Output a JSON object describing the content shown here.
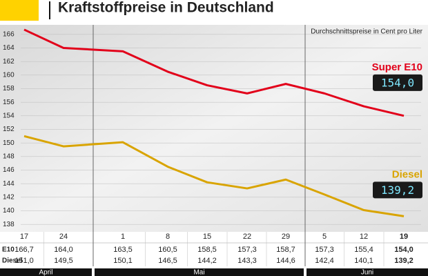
{
  "chart_data": {
    "type": "line",
    "title": "Kraftstoffpreise in Deutschland",
    "subtitle": "Durchschnittspreise in Cent pro Liter",
    "groups": [
      {
        "name": "April",
        "categories": [
          "17",
          "24"
        ]
      },
      {
        "name": "Mai",
        "categories": [
          "1",
          "8",
          "15",
          "22",
          "29"
        ]
      },
      {
        "name": "Juni",
        "categories": [
          "5",
          "12",
          "19"
        ]
      }
    ],
    "series": [
      {
        "name": "Super E10",
        "row_label": "E10",
        "color": "#e2001a",
        "values": [
          166.7,
          164.0,
          163.5,
          160.5,
          158.5,
          157.3,
          158.7,
          157.3,
          155.4,
          154.0
        ],
        "value_labels": [
          "166,7",
          "164,0",
          "163,5",
          "160,5",
          "158,5",
          "157,3",
          "158,7",
          "157,3",
          "155,4",
          "154,0"
        ]
      },
      {
        "name": "Diesel",
        "row_label": "Diesel",
        "color": "#d9a400",
        "values": [
          151.0,
          149.5,
          150.1,
          146.5,
          144.2,
          143.3,
          144.6,
          142.4,
          140.1,
          139.2
        ],
        "value_labels": [
          "151,0",
          "149,5",
          "150,1",
          "146,5",
          "144,2",
          "143,3",
          "144,6",
          "142,4",
          "140,1",
          "139,2"
        ]
      }
    ],
    "ylim": [
      137,
      167
    ],
    "yticks": [
      138,
      140,
      142,
      144,
      146,
      148,
      150,
      152,
      154,
      156,
      158,
      160,
      162,
      164,
      166
    ],
    "grid": true
  }
}
